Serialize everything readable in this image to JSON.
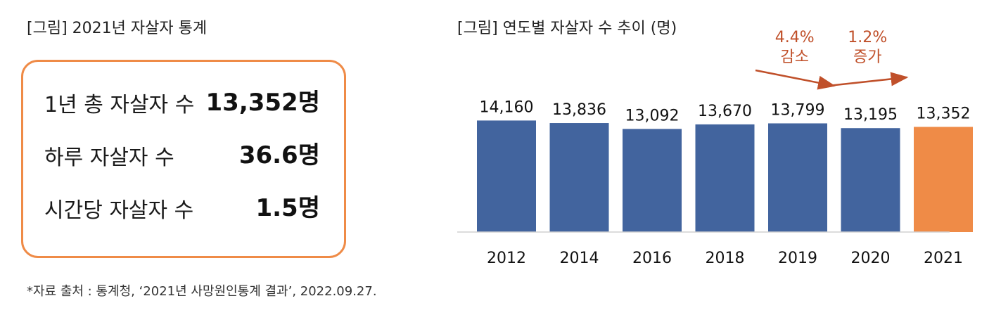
{
  "left": {
    "title": "[그림] 2021년 자살자 통계",
    "stats": [
      {
        "label": "1년 총 자살자 수",
        "value": "13,352명"
      },
      {
        "label": "하루 자살자 수",
        "value": "36.6명"
      },
      {
        "label": "시간당 자살자 수",
        "value": "1.5명"
      }
    ],
    "source": "*자료 출처 : 통계청, ‘2021년 사망원인통계 결과’, 2022.09.27."
  },
  "colors": {
    "bar": "#42649e",
    "highlight": "#ef8b47",
    "annotation": "#c0502a",
    "border": "#ef8b47"
  },
  "chart_data": {
    "type": "bar",
    "title": "[그림] 연도별 자살자 수 추이 (명)",
    "categories": [
      "2012",
      "2014",
      "2016",
      "2018",
      "2019",
      "2020",
      "2021"
    ],
    "values": [
      14160,
      13836,
      13092,
      13670,
      13799,
      13195,
      13352
    ],
    "value_labels": [
      "14,160",
      "13,836",
      "13,092",
      "13,670",
      "13,799",
      "13,195",
      "13,352"
    ],
    "highlight_index": 6,
    "ylim": [
      0,
      15000
    ],
    "grid": false,
    "annotations": [
      {
        "line1": "4.4%",
        "line2": "감소",
        "from_index": 4,
        "to_index": 5
      },
      {
        "line1": "1.2%",
        "line2": "증가",
        "from_index": 5,
        "to_index": 6
      }
    ]
  }
}
